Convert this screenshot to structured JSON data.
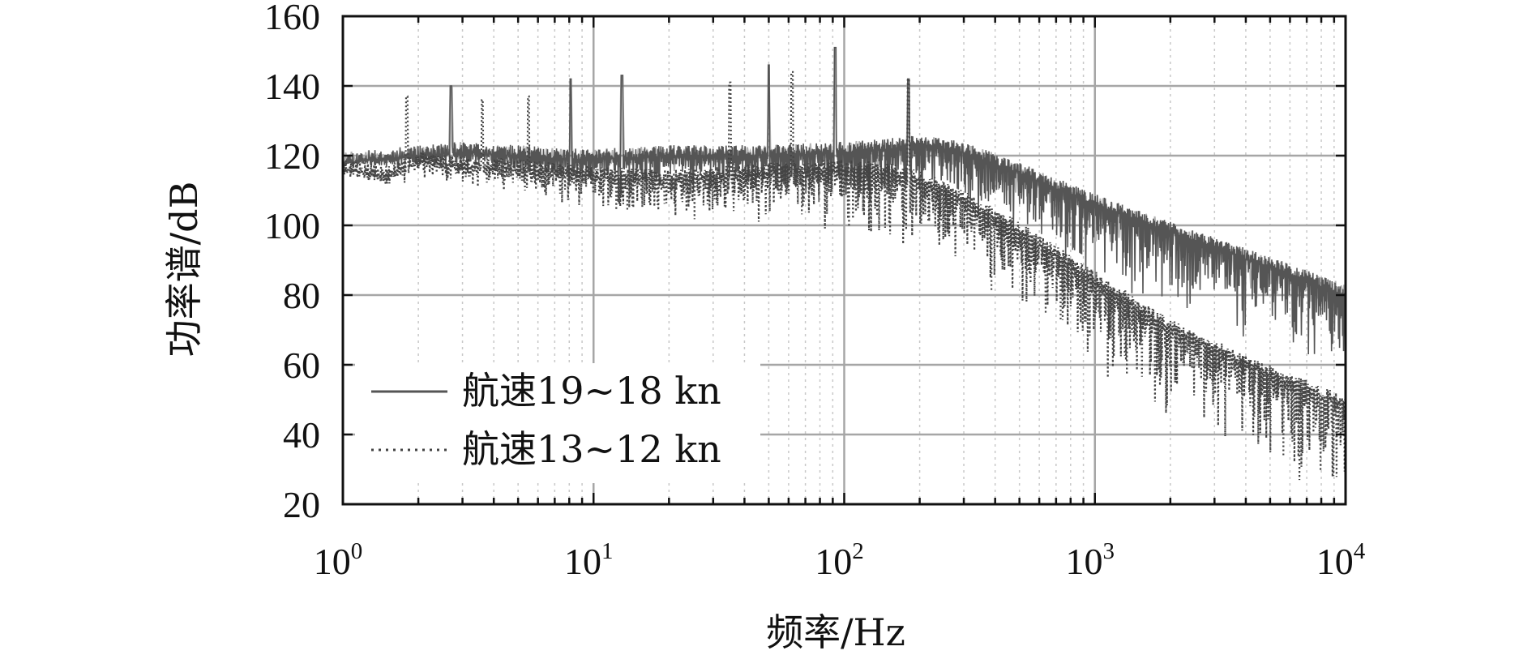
{
  "chart_data": {
    "type": "line",
    "title": "",
    "xlabel": "频率/Hz",
    "ylabel": "功率谱/dB",
    "xscale": "log",
    "xlim": [
      1,
      10000
    ],
    "ylim": [
      20,
      160
    ],
    "x_ticks": [
      {
        "base": "10",
        "exp": "0",
        "value": 1
      },
      {
        "base": "10",
        "exp": "1",
        "value": 10
      },
      {
        "base": "10",
        "exp": "2",
        "value": 100
      },
      {
        "base": "10",
        "exp": "3",
        "value": 1000
      },
      {
        "base": "10",
        "exp": "4",
        "value": 10000
      }
    ],
    "y_ticks": [
      "20",
      "40",
      "60",
      "80",
      "100",
      "120",
      "140",
      "160"
    ],
    "grid": true,
    "legend_position": "bottom-left",
    "series": [
      {
        "name": "航速19~18 kn",
        "style": "solid",
        "color": "#555555",
        "x": [
          1,
          1.5,
          2,
          3,
          5,
          8,
          10,
          20,
          50,
          100,
          150,
          200,
          300,
          500,
          1000,
          2000,
          5000,
          10000
        ],
        "y": [
          118,
          119,
          120,
          121,
          120,
          119,
          119,
          120,
          120,
          121,
          122,
          123,
          121,
          115,
          106,
          98,
          88,
          80
        ],
        "peaks": [
          {
            "x": 2.7,
            "y": 140
          },
          {
            "x": 8.1,
            "y": 142
          },
          {
            "x": 13,
            "y": 143
          },
          {
            "x": 50,
            "y": 146
          },
          {
            "x": 92,
            "y": 151
          },
          {
            "x": 180,
            "y": 142
          }
        ]
      },
      {
        "name": "航速13~12 kn",
        "style": "dotted",
        "color": "#444444",
        "x": [
          1,
          1.5,
          2,
          3,
          5,
          8,
          10,
          20,
          50,
          100,
          150,
          200,
          300,
          500,
          1000,
          2000,
          5000,
          10000
        ],
        "y": [
          116,
          114,
          118,
          117,
          116,
          115,
          114,
          113,
          115,
          116,
          115,
          113,
          107,
          98,
          84,
          70,
          57,
          48
        ],
        "peaks": [
          {
            "x": 1.8,
            "y": 137
          },
          {
            "x": 3.6,
            "y": 136
          },
          {
            "x": 5.5,
            "y": 137
          },
          {
            "x": 35,
            "y": 141
          },
          {
            "x": 62,
            "y": 144
          },
          {
            "x": 180,
            "y": 142
          }
        ]
      }
    ]
  },
  "colors": {
    "grid_major": "#a6a6a6",
    "grid_minor": "#c8c8c8",
    "axis": "#111111",
    "light_trace": "#b4b4b4"
  }
}
